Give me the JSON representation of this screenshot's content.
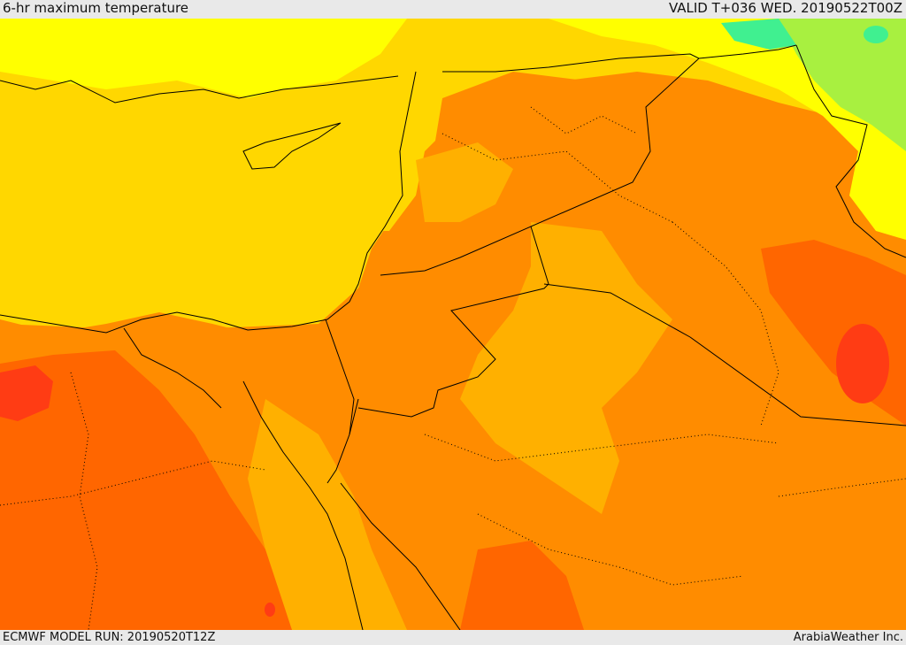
{
  "header": {
    "title": "6-hr maximum temperature",
    "valid": "VALID T+036 WED. 20190522T00Z"
  },
  "footer": {
    "model_run": "ECMWF MODEL RUN: 20190520T12Z",
    "credit": "ArabiaWeather Inc."
  },
  "colors": {
    "sea_yellow": "#ffd700",
    "pale_yellow": "#ffff00",
    "light_orange": "#ffb000",
    "orange": "#ff8c00",
    "dark_orange": "#ff6600",
    "red": "#ff3c14",
    "green": "#a8f040",
    "cyan_green": "#40f090",
    "border_line": "#000000"
  }
}
